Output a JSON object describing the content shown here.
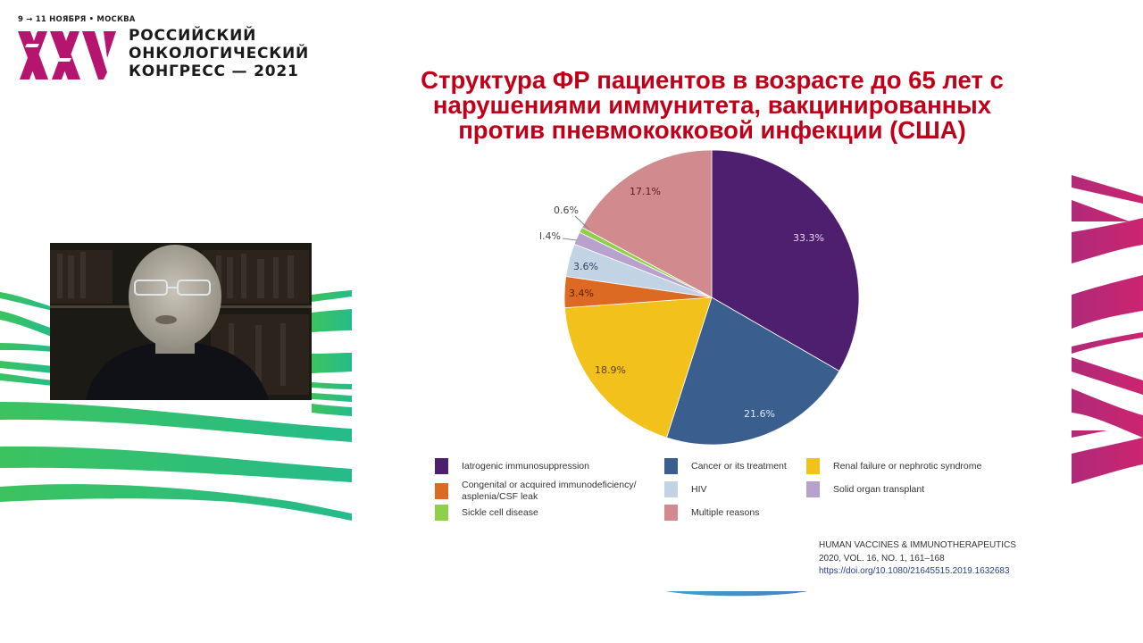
{
  "logo": {
    "date_line": "9 → 11 НОЯБРЯ • МОСКВА",
    "mark": "XXV",
    "lines": [
      "РОССИЙСКИЙ",
      "ОНКОЛОГИЧЕСКИЙ",
      "КОНГРЕСС — 2021"
    ],
    "color": "#b5146f"
  },
  "slide": {
    "title_lines": [
      "Структура ФР пациентов в возрасте до 65 лет с",
      "нарушениями иммунитета, вакцинированных",
      "против пневмококковой инфекции (США)"
    ],
    "title_color": "#c00018"
  },
  "webcam": {
    "label": "speaker-video-feed"
  },
  "chart_data": {
    "type": "pie",
    "title": "Структура ФР пациентов в возрасте до 65 лет с нарушениями иммунитета, вакцинированных против пневмококковой инфекции (США)",
    "start_angle_deg": 0,
    "direction": "clockwise",
    "legend_position": "bottom",
    "categories": [
      "Iatrogenic immunosuppression",
      "Cancer or its treatment",
      "Renal failure or nephrotic syndrome",
      "Congenital or acquired immunodeficiency/ asplenia/CSF leak",
      "HIV",
      "Solid organ transplant",
      "Sickle cell disease",
      "Multiple reasons"
    ],
    "values": [
      33.3,
      21.6,
      18.9,
      3.4,
      3.6,
      1.4,
      0.6,
      17.1
    ],
    "labels": [
      "33.3%",
      "21.6%",
      "18.9%",
      "3.4%",
      "3.6%",
      "l.4%",
      "0.6%",
      "17.1%"
    ],
    "colors": [
      "#4e1f6e",
      "#3a5f8e",
      "#f2c11b",
      "#dd6a22",
      "#c2d3e6",
      "#b9a1cd",
      "#8fd04a",
      "#d18a8e"
    ],
    "label_colors": [
      "#ead7f3",
      "#dde8f3",
      "#5a4200",
      "#5a2000",
      "#2e4562",
      "#444",
      "#444",
      "#5a1f25"
    ]
  },
  "legend": {
    "items": [
      {
        "label": "Iatrogenic immunosuppression",
        "color": "#4e1f6e"
      },
      {
        "label": "Cancer or its treatment",
        "color": "#3a5f8e"
      },
      {
        "label": "Renal failure or nephrotic syndrome",
        "color": "#f2c11b"
      },
      {
        "label": "Congenital or acquired immunodeficiency/",
        "label2": "asplenia/CSF leak",
        "color": "#dd6a22"
      },
      {
        "label": "HIV",
        "color": "#c2d3e6"
      },
      {
        "label": "Solid organ transplant",
        "color": "#b9a1cd"
      },
      {
        "label": "Sickle cell disease",
        "color": "#8fd04a"
      },
      {
        "label": "Multiple reasons",
        "color": "#d18a8e"
      }
    ]
  },
  "citation": {
    "journal": "HUMAN VACCINES & IMMUNOTHERAPEUTICS",
    "issue": "2020, VOL. 16, NO. 1, 161–168",
    "doi": "https://doi.org/10.1080/21645515.2019.1632683"
  },
  "decor": {
    "green": "#2bbd7a",
    "magenta": "#c02675",
    "arc": "#3f8fc6"
  }
}
